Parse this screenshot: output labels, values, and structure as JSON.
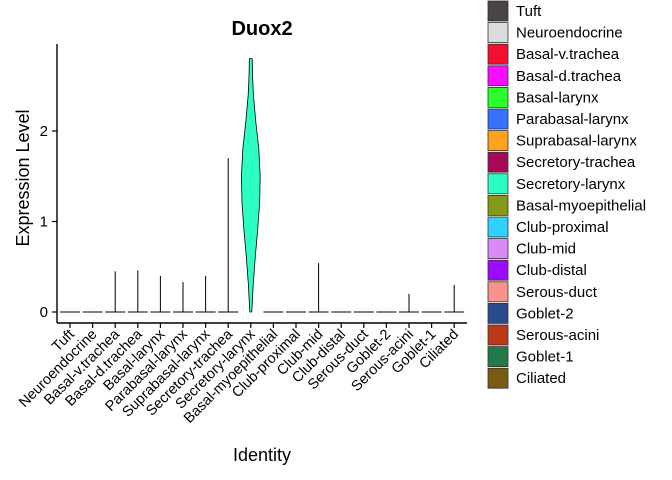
{
  "chart_data": {
    "type": "violin",
    "title": "Duox2",
    "xlabel": "Identity",
    "ylabel": "Expression Level",
    "ylim": [
      -0.1,
      2.95
    ],
    "yticks": [
      0,
      1,
      2
    ],
    "legend_position": "right",
    "categories": [
      "Tuft",
      "Neuroendocrine",
      "Basal-v.trachea",
      "Basal-d.trachea",
      "Basal-larynx",
      "Parabasal-larynx",
      "Suprabasal-larynx",
      "Secretory-trachea",
      "Secretory-larynx",
      "Basal-myoepithelial",
      "Club-proximal",
      "Club-mid",
      "Club-distal",
      "Serous-duct",
      "Goblet-2",
      "Serous-acini",
      "Goblet-1",
      "Ciliated"
    ],
    "colors": [
      "#4a4447",
      "#dcdcdc",
      "#f20f2f",
      "#f70dff",
      "#2bff2b",
      "#3572ff",
      "#ffa31e",
      "#a50a5a",
      "#2dffc4",
      "#829a15",
      "#2fd2ff",
      "#d98af7",
      "#9b0bff",
      "#f7938c",
      "#2a4a8c",
      "#b83818",
      "#227a4a",
      "#7a5a10"
    ],
    "max_values": [
      0,
      0,
      0.45,
      0.46,
      0.4,
      0.33,
      0.4,
      1.7,
      2.8,
      0,
      0,
      0.54,
      0,
      0,
      0,
      0.2,
      0,
      0.3
    ],
    "violin_profile": {
      "category": "Secretory-larynx",
      "y": [
        0,
        0.3,
        0.6,
        0.9,
        1.2,
        1.5,
        1.8,
        2.1,
        2.4,
        2.6,
        2.8
      ],
      "half_width": [
        0.05,
        0.12,
        0.22,
        0.34,
        0.44,
        0.47,
        0.4,
        0.25,
        0.13,
        0.09,
        0.07
      ]
    }
  }
}
